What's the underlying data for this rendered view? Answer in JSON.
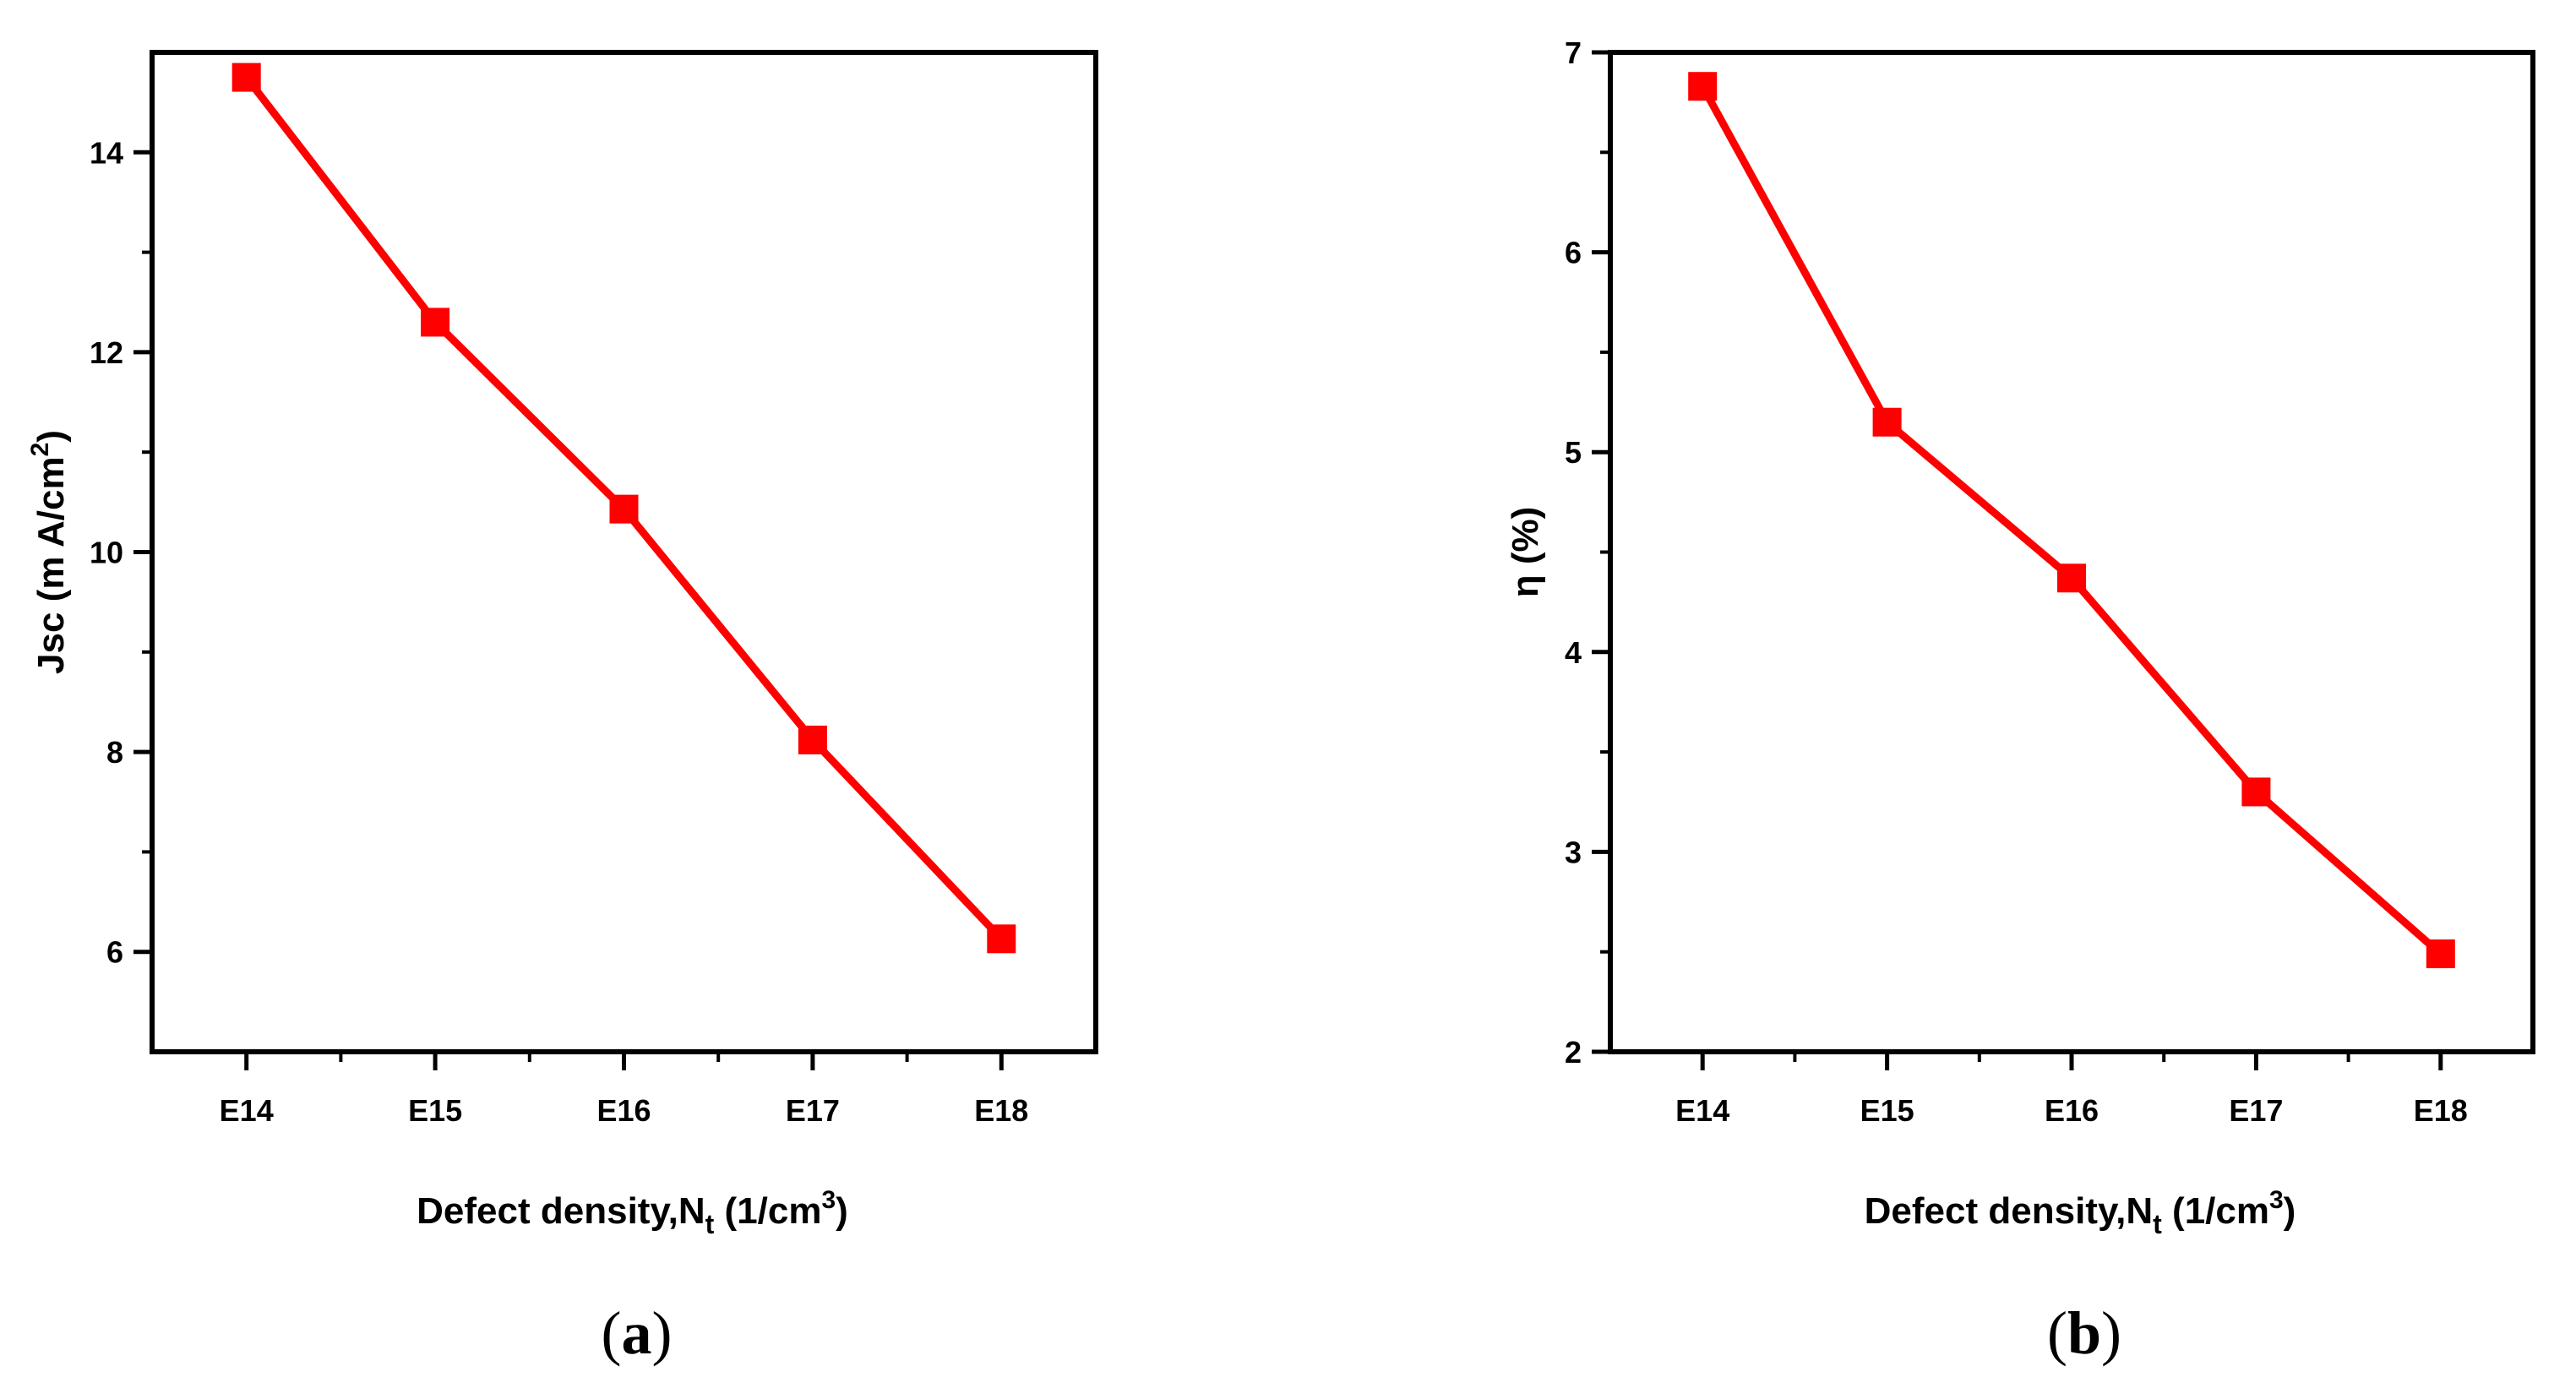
{
  "chart_data": [
    {
      "panel_label": "a",
      "type": "line",
      "categories": [
        "E14",
        "E15",
        "E16",
        "E17",
        "E18"
      ],
      "values": [
        14.75,
        12.3,
        10.43,
        8.12,
        6.13
      ],
      "ylabel_parts": [
        "Jsc (m A/cm",
        "2",
        ")"
      ],
      "xlabel_parts": [
        "Defect density,N",
        "t",
        " (1/cm",
        "3",
        ")"
      ],
      "ylim": [
        5,
        15
      ],
      "yticks": [
        6,
        8,
        10,
        12,
        14
      ],
      "ytick_labels": [
        "6",
        "8",
        "10",
        "12",
        "14"
      ],
      "series_color": "#ff0000",
      "marker": "square"
    },
    {
      "panel_label": "b",
      "type": "line",
      "categories": [
        "E14",
        "E15",
        "E16",
        "E17",
        "E18"
      ],
      "values": [
        6.83,
        5.15,
        4.37,
        3.3,
        2.49
      ],
      "ylabel_parts": [
        "η (%)"
      ],
      "xlabel_parts": [
        "Defect density,N",
        "t",
        " (1/cm",
        "3",
        ")"
      ],
      "ylim": [
        2,
        7
      ],
      "yticks": [
        2,
        3,
        4,
        5,
        6,
        7
      ],
      "ytick_labels": [
        "2",
        "3",
        "4",
        "5",
        "6",
        "7"
      ],
      "series_color": "#ff0000",
      "marker": "square"
    }
  ]
}
